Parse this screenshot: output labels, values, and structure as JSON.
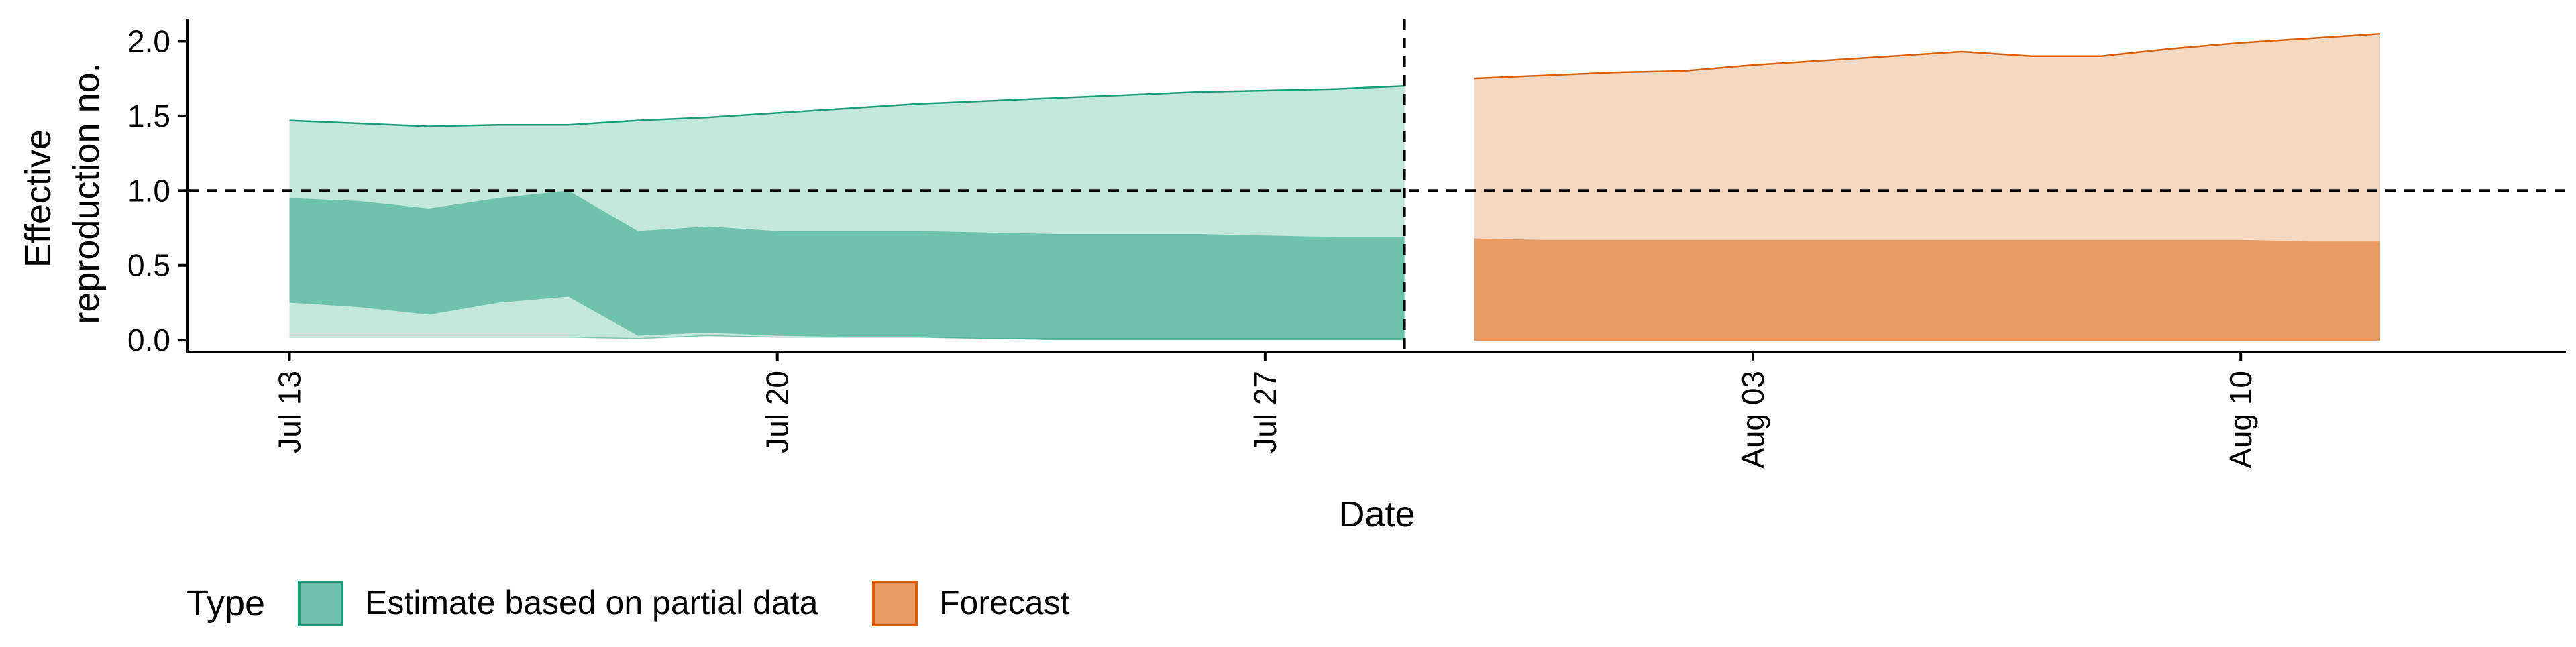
{
  "chart_data": {
    "type": "area",
    "title": "",
    "xlabel": "Date",
    "ylabel": [
      "Effective",
      "reproduction no."
    ],
    "ylim": [
      -0.08,
      2.15
    ],
    "y_ticks": [
      0.0,
      0.5,
      1.0,
      1.5,
      2.0
    ],
    "y_tick_labels": [
      "0.0",
      "0.5",
      "1.0",
      "1.5",
      "2.0"
    ],
    "x_start": "2020-07-12",
    "x_ticks": [
      {
        "date": "2020-07-13",
        "label": "Jul 13"
      },
      {
        "date": "2020-07-20",
        "label": "Jul 20"
      },
      {
        "date": "2020-07-27",
        "label": "Jul 27"
      },
      {
        "date": "2020-08-03",
        "label": "Aug 03"
      },
      {
        "date": "2020-08-10",
        "label": "Aug 10"
      }
    ],
    "xlim": [
      "2020-07-11 13:00",
      "2020-08-14 16:00"
    ],
    "hline": 1.0,
    "vline": "2020-07-29",
    "legend": {
      "title": "Type",
      "placement": "bottom-left",
      "items": [
        {
          "label": "Estimate based on partial data",
          "fill": "#6fc3aa",
          "stroke": "#1b9e77"
        },
        {
          "label": "Forecast",
          "fill": "#e89a62",
          "stroke": "#d95f02"
        }
      ]
    },
    "series": [
      {
        "name": "Estimate based on partial data",
        "color": "#1b9e77",
        "outer_fill": "#c4e7dc",
        "inner_fill": "#6fc3aa",
        "dates": [
          "2020-07-13",
          "2020-07-14",
          "2020-07-15",
          "2020-07-16",
          "2020-07-17",
          "2020-07-18",
          "2020-07-19",
          "2020-07-20",
          "2020-07-21",
          "2020-07-22",
          "2020-07-23",
          "2020-07-24",
          "2020-07-25",
          "2020-07-26",
          "2020-07-27",
          "2020-07-28",
          "2020-07-29"
        ],
        "upper90": [
          1.47,
          1.45,
          1.43,
          1.44,
          1.44,
          1.47,
          1.49,
          1.52,
          1.55,
          1.58,
          1.6,
          1.62,
          1.64,
          1.66,
          1.67,
          1.68,
          1.7
        ],
        "lower90": [
          0.02,
          0.02,
          0.02,
          0.02,
          0.02,
          0.01,
          0.03,
          0.02,
          0.02,
          0.02,
          0.01,
          0.01,
          0.01,
          0.01,
          0.01,
          0.01,
          0.01
        ],
        "upper50": [
          0.95,
          0.93,
          0.88,
          0.95,
          1.0,
          0.73,
          0.76,
          0.73,
          0.73,
          0.73,
          0.72,
          0.71,
          0.71,
          0.71,
          0.7,
          0.69,
          0.69
        ],
        "lower50": [
          0.25,
          0.22,
          0.17,
          0.25,
          0.29,
          0.03,
          0.05,
          0.03,
          0.02,
          0.02,
          0.01,
          0.0,
          0.0,
          0.0,
          0.0,
          0.0,
          0.0
        ]
      },
      {
        "name": "Forecast",
        "color": "#d95f02",
        "outer_fill": "#f5d8c1",
        "inner_fill": "#e89a62",
        "dates": [
          "2020-07-30",
          "2020-07-31",
          "2020-08-01",
          "2020-08-02",
          "2020-08-03",
          "2020-08-04",
          "2020-08-05",
          "2020-08-06",
          "2020-08-07",
          "2020-08-08",
          "2020-08-09",
          "2020-08-10",
          "2020-08-11",
          "2020-08-12"
        ],
        "upper90": [
          1.75,
          1.77,
          1.79,
          1.8,
          1.84,
          1.87,
          1.9,
          1.93,
          1.9,
          1.9,
          1.95,
          1.99,
          2.02,
          2.05
        ],
        "lower90": [
          0.0,
          0.0,
          0.0,
          0.0,
          0.0,
          0.0,
          0.0,
          0.0,
          0.0,
          0.0,
          0.0,
          0.0,
          0.0,
          0.0
        ],
        "upper50": [
          0.68,
          0.67,
          0.67,
          0.67,
          0.67,
          0.67,
          0.67,
          0.67,
          0.67,
          0.67,
          0.67,
          0.67,
          0.66,
          0.66
        ],
        "lower50": [
          0.0,
          0.0,
          0.0,
          0.0,
          0.0,
          0.0,
          0.0,
          0.0,
          0.0,
          0.0,
          0.0,
          0.0,
          0.0,
          0.0
        ]
      }
    ]
  }
}
